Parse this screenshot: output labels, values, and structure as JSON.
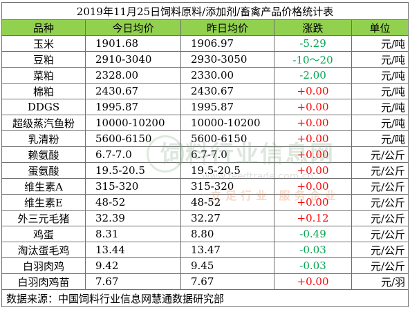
{
  "title": "2019年11月25日饲料原料/添加剂/畜禽产品价格统计表",
  "headers": [
    "品种",
    "今日均价",
    "昨日均价",
    "涨跌",
    "单位"
  ],
  "rows": [
    {
      "name": "玉米",
      "today": "1901.68",
      "yesterday": "1906.97",
      "change": "-5.29",
      "unit": "元/吨"
    },
    {
      "name": "豆粕",
      "today": "2910-3040",
      "yesterday": "2930-3050",
      "change": "-10～20",
      "unit": "元/吨"
    },
    {
      "name": "菜粕",
      "today": "2328.00",
      "yesterday": "2330.00",
      "change": "-2.00",
      "unit": "元/吨"
    },
    {
      "name": "棉粕",
      "today": "2430.67",
      "yesterday": "2430.67",
      "change": "+0.00",
      "unit": "元/吨"
    },
    {
      "name": "DDGS",
      "today": "1995.87",
      "yesterday": "1995.87",
      "change": "+0.00",
      "unit": "元/吨"
    },
    {
      "name": "超级蒸汽鱼粉",
      "today": "10000-10200",
      "yesterday": "10000-10200",
      "change": "+0.00",
      "unit": "元/吨"
    },
    {
      "name": "乳清粉",
      "today": "5600-6150",
      "yesterday": "5600-6150",
      "change": "+0.00",
      "unit": "元/吨"
    },
    {
      "name": "赖氨酸",
      "today": "6.7-7.0",
      "yesterday": "6.7-7.0",
      "change": "+0.00",
      "unit": "元/公斤"
    },
    {
      "name": "蛋氨酸",
      "today": "19.5-20.5",
      "yesterday": "19.5-20.5",
      "change": "+0.00",
      "unit": "元/公斤"
    },
    {
      "name": "维生素A",
      "today": "315-320",
      "yesterday": "315-320",
      "change": "+0.00",
      "unit": "元/公斤"
    },
    {
      "name": "维生素E",
      "today": "48-52",
      "yesterday": "48-52",
      "change": "+0.00",
      "unit": "元/公斤"
    },
    {
      "name": "外三元毛猪",
      "today": "32.39",
      "yesterday": "32.27",
      "change": "+0.12",
      "unit": "元/公斤"
    },
    {
      "name": "鸡蛋",
      "today": "8.31",
      "yesterday": "8.80",
      "change": "-0.49",
      "unit": "元/公斤"
    },
    {
      "name": "淘汰蛋毛鸡",
      "today": "13.44",
      "yesterday": "13.47",
      "change": "-0.03",
      "unit": "元/公斤"
    },
    {
      "name": "白羽肉鸡",
      "today": "9.42",
      "yesterday": "9.45",
      "change": "-0.03",
      "unit": "元/公斤"
    },
    {
      "name": "白羽肉鸡苗",
      "today": "7.67",
      "yesterday": "7.67",
      "change": "+0.00",
      "unit": "元/羽"
    }
  ],
  "footer": "数据来源：中国饲料行业信息网慧通数据研究部",
  "watermark": {
    "name": "饲料行业信息网",
    "url": "www.feedtrade.com.cn",
    "slogan": "立足行业 服务企业"
  },
  "colors": {
    "header_bg": "#92d050",
    "up": "#ff0000",
    "down": "#00a650",
    "border": "#6f6f6f"
  }
}
